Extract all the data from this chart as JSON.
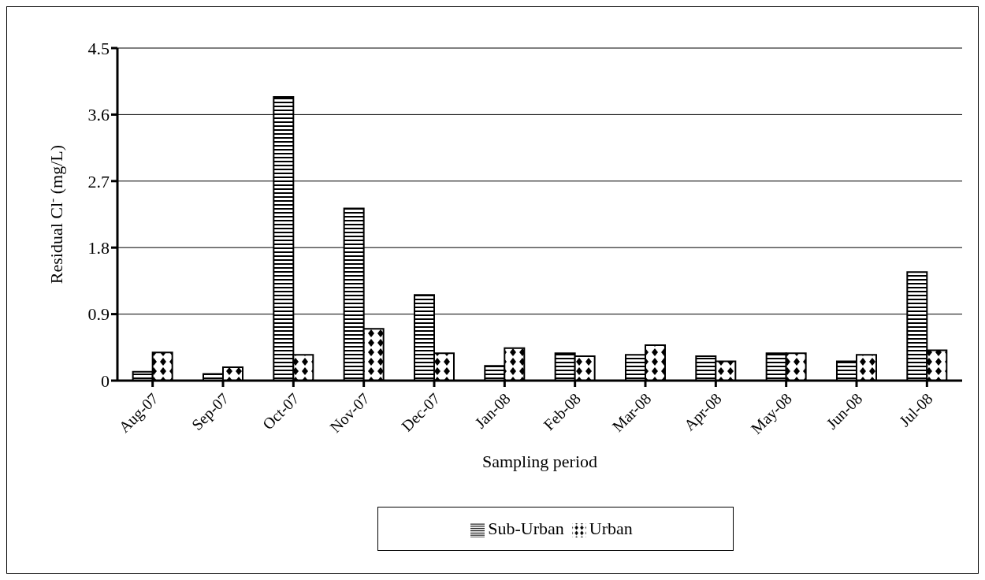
{
  "chart_data": {
    "type": "bar",
    "xlabel": "Sampling period",
    "ylabel": "Residual Cl$^{-}$ (mg/L)",
    "categories": [
      "Aug-07",
      "Sep-07",
      "Oct-07",
      "Nov-07",
      "Dec-07",
      "Jan-08",
      "Feb-08",
      "Mar-08",
      "Apr-08",
      "May-08",
      "Jun-08",
      "Jul-08"
    ],
    "series": [
      {
        "name": "Sub-Urban",
        "color": "#000000",
        "values": [
          0.12,
          0.09,
          3.84,
          2.33,
          1.16,
          0.2,
          0.37,
          0.35,
          0.33,
          0.37,
          0.26,
          1.47
        ]
      },
      {
        "name": "Urban",
        "color": "#000000",
        "values": [
          0.38,
          0.18,
          0.35,
          0.7,
          0.37,
          0.44,
          0.33,
          0.48,
          0.26,
          0.37,
          0.35,
          0.41
        ]
      }
    ],
    "ylim": [
      0,
      4.5
    ],
    "yticks": [
      0,
      0.9,
      1.8,
      2.7,
      3.6,
      4.5
    ],
    "grid": "y",
    "legend": "bottom"
  }
}
